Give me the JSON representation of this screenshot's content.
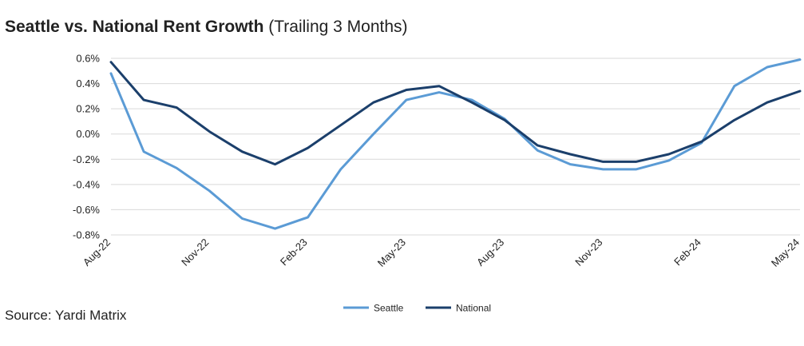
{
  "chart_data": {
    "type": "line",
    "title": "Seattle vs. National Rent Growth",
    "subtitle": "(Trailing 3 Months)",
    "x": [
      "Aug-22",
      "Sep-22",
      "Oct-22",
      "Nov-22",
      "Dec-22",
      "Jan-23",
      "Feb-23",
      "Mar-23",
      "Apr-23",
      "May-23",
      "Jun-23",
      "Jul-23",
      "Aug-23",
      "Sep-23",
      "Oct-23",
      "Nov-23",
      "Dec-23",
      "Jan-24",
      "Feb-24",
      "Mar-24",
      "Apr-24",
      "May-24"
    ],
    "x_tick_labels": [
      "Aug-22",
      "Nov-22",
      "Feb-23",
      "May-23",
      "Aug-23",
      "Nov-23",
      "Feb-24",
      "May-24"
    ],
    "y_tick_labels": [
      "0.6%",
      "0.4%",
      "0.2%",
      "0.0%",
      "-0.2%",
      "-0.4%",
      "-0.6%",
      "-0.8%"
    ],
    "ylim": [
      -0.8,
      0.6
    ],
    "grid": true,
    "legend_position": "bottom-center",
    "series": [
      {
        "name": "Seattle",
        "color": "#5b9bd5",
        "values": [
          0.48,
          -0.14,
          -0.27,
          -0.45,
          -0.67,
          -0.75,
          -0.66,
          -0.28,
          0.0,
          0.27,
          0.33,
          0.27,
          0.12,
          -0.13,
          -0.24,
          -0.28,
          -0.28,
          -0.21,
          -0.07,
          0.38,
          0.53,
          0.59
        ]
      },
      {
        "name": "National",
        "color": "#1b3f6b",
        "values": [
          0.57,
          0.27,
          0.21,
          0.02,
          -0.14,
          -0.24,
          -0.11,
          0.07,
          0.25,
          0.35,
          0.38,
          0.25,
          0.11,
          -0.09,
          -0.16,
          -0.22,
          -0.22,
          -0.16,
          -0.06,
          0.11,
          0.25,
          0.34
        ]
      }
    ]
  },
  "source": "Source: Yardi Matrix"
}
